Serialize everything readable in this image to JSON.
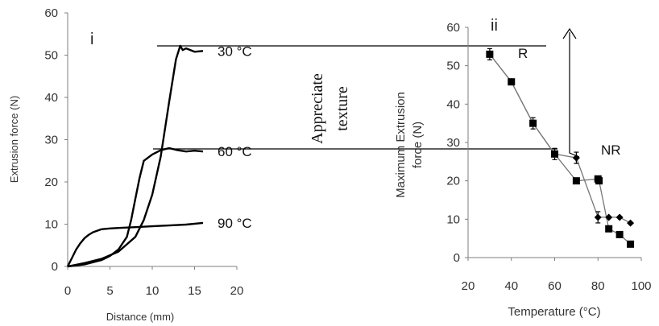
{
  "colors": {
    "ink": "#000000",
    "axis": "#7f7f7f",
    "text": "#333333"
  },
  "chart_data": [
    {
      "type": "line",
      "panel_label": "i",
      "xlabel": "Distance (mm)",
      "ylabel": "Extrusion force (N)",
      "xlim": [
        0,
        20
      ],
      "ylim": [
        0,
        60
      ],
      "x_ticks": [
        "0",
        "5",
        "10",
        "15",
        "20"
      ],
      "y_ticks": [
        "0",
        "10",
        "20",
        "30",
        "40",
        "50",
        "60"
      ],
      "grid": false,
      "series": [
        {
          "name": "30 °C",
          "x": [
            0,
            2,
            4,
            6,
            8,
            9,
            10,
            11,
            12,
            12.8,
            13.3,
            13.6,
            14,
            15,
            16
          ],
          "y": [
            0,
            0.8,
            1.8,
            3.5,
            7,
            11,
            17,
            26,
            39,
            49,
            52.2,
            51.2,
            51.6,
            50.8,
            51
          ]
        },
        {
          "name": "60 °C",
          "x": [
            0,
            2,
            4,
            5,
            6,
            7,
            7.5,
            8,
            8.5,
            9,
            10,
            11,
            12,
            13,
            14,
            15,
            16
          ],
          "y": [
            0,
            0.5,
            1.5,
            2.5,
            4,
            7,
            11,
            16,
            21,
            25,
            26.5,
            27.5,
            28,
            27.5,
            27.2,
            27.4,
            27.2
          ]
        },
        {
          "name": "90 °C",
          "x": [
            0,
            0.5,
            1,
            1.5,
            2,
            2.5,
            3,
            4,
            5,
            6,
            7,
            8,
            10,
            12,
            14,
            16
          ],
          "y": [
            0,
            2,
            4,
            5.5,
            6.7,
            7.5,
            8.1,
            8.8,
            9,
            9.1,
            9.2,
            9.3,
            9.5,
            9.7,
            9.9,
            10.3
          ]
        }
      ],
      "annotations": [
        "Appreciate",
        "texture"
      ]
    },
    {
      "type": "scatter",
      "panel_label": "ii",
      "xlabel": "Temperature (°C)",
      "ylabel_lines": [
        "Maximum Extrusion",
        "force (N)"
      ],
      "xlim": [
        20,
        100
      ],
      "ylim": [
        0,
        60
      ],
      "x_ticks": [
        "20",
        "40",
        "60",
        "80",
        "100"
      ],
      "y_ticks": [
        "0",
        "10",
        "20",
        "30",
        "40",
        "50",
        "60"
      ],
      "grid": false,
      "series": [
        {
          "label": "R",
          "marker": "diamond",
          "x": [
            30,
            40,
            50,
            60,
            70,
            80,
            85,
            90,
            95
          ],
          "y": [
            53,
            45.8,
            35,
            27,
            26,
            10.5,
            10.5,
            10.5,
            9
          ]
        },
        {
          "label": "NR",
          "marker": "square",
          "x": [
            30,
            40,
            50,
            60,
            70,
            80,
            80.5,
            85,
            90,
            95
          ],
          "y": [
            53,
            45.8,
            35,
            27,
            20,
            20.5,
            20,
            7.5,
            6,
            3.5
          ]
        }
      ]
    }
  ]
}
